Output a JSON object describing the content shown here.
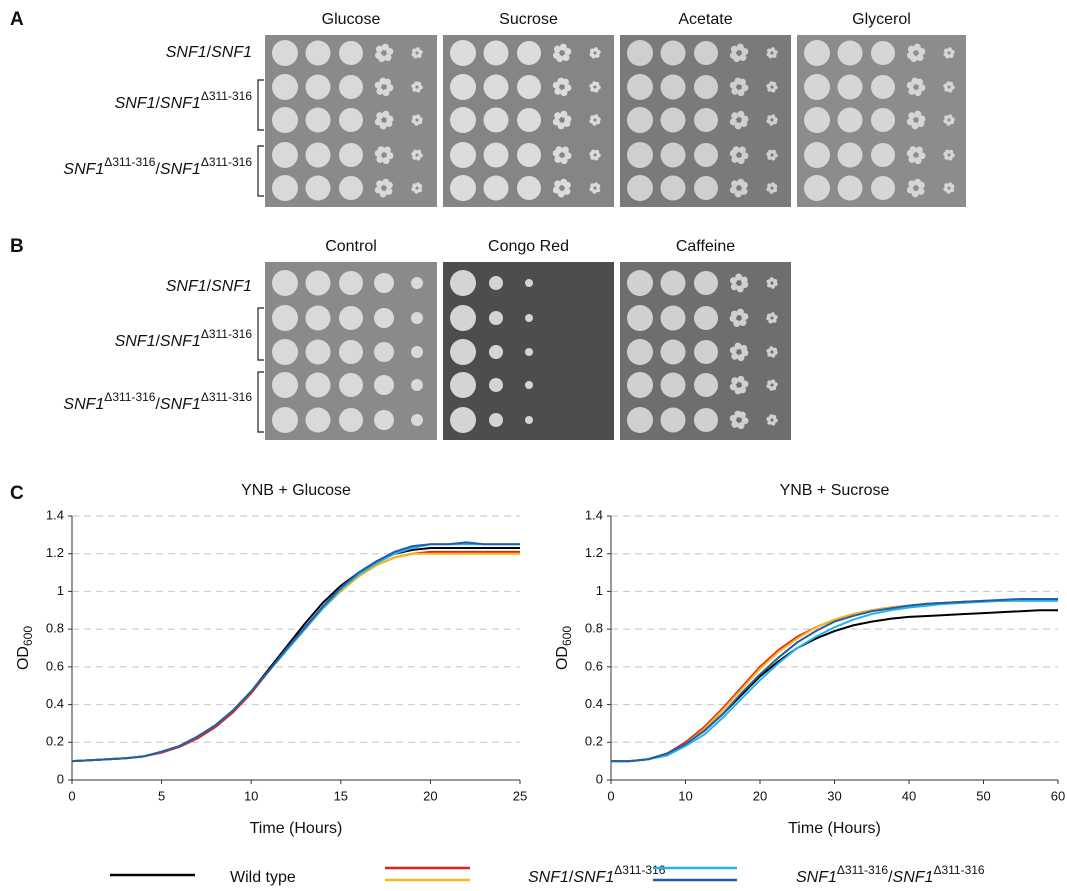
{
  "panels": [
    {
      "label": "A",
      "conditions": [
        "Glucose",
        "Sucrose",
        "Acetate",
        "Glycerol"
      ]
    },
    {
      "label": "B",
      "conditions": [
        "Control",
        "Congo Red",
        "Caffeine"
      ]
    }
  ],
  "strains": [
    {
      "parts": [
        "SNF1",
        "/",
        "SNF1"
      ]
    },
    {
      "parts": [
        "SNF1",
        "/",
        "SNF1",
        {
          "sup": "Δ311-316"
        }
      ]
    },
    {
      "parts": [
        "SNF1",
        {
          "sup": "Δ311-316"
        },
        "/",
        "SNF1",
        {
          "sup": "Δ311-316"
        }
      ]
    }
  ],
  "chart_panel": "C",
  "legend": [
    {
      "parts": [
        "Wild type"
      ],
      "colors": [
        "#000000"
      ]
    },
    {
      "parts": [
        "SNF1",
        "/",
        "SNF1",
        {
          "sup": "Δ311-316"
        }
      ],
      "colors": [
        "#e8201a",
        "#f5b915"
      ]
    },
    {
      "parts": [
        "SNF1",
        {
          "sup": "Δ311-316"
        },
        "/",
        "SNF1",
        {
          "sup": "Δ311-316"
        }
      ],
      "colors": [
        "#27b3ea",
        "#1f5fa8"
      ]
    }
  ],
  "chart_data": [
    {
      "type": "line",
      "title": "YNB + Glucose",
      "xlabel": "Time (Hours)",
      "ylabel": "OD",
      "ylabel_sub": "600",
      "xlim": [
        0,
        25
      ],
      "xticks": [
        0,
        5,
        10,
        15,
        20,
        25
      ],
      "ylim": [
        0,
        1.4
      ],
      "yticks": [
        0,
        0.2,
        0.4,
        0.6,
        0.8,
        1,
        1.2,
        1.4
      ],
      "grid": true,
      "x": [
        0,
        1,
        2,
        3,
        4,
        5,
        6,
        7,
        8,
        9,
        10,
        11,
        12,
        13,
        14,
        15,
        16,
        17,
        18,
        19,
        20,
        21,
        22,
        23,
        24,
        25
      ],
      "series": [
        {
          "color": "#000000",
          "values": [
            0.1,
            0.105,
            0.11,
            0.115,
            0.125,
            0.15,
            0.18,
            0.23,
            0.29,
            0.37,
            0.47,
            0.59,
            0.71,
            0.83,
            0.94,
            1.03,
            1.1,
            1.16,
            1.2,
            1.22,
            1.23,
            1.23,
            1.23,
            1.23,
            1.23,
            1.23
          ]
        },
        {
          "color": "#e8201a",
          "values": [
            0.1,
            0.105,
            0.11,
            0.115,
            0.125,
            0.145,
            0.175,
            0.22,
            0.28,
            0.36,
            0.46,
            0.58,
            0.7,
            0.81,
            0.92,
            1.01,
            1.08,
            1.14,
            1.18,
            1.2,
            1.21,
            1.21,
            1.21,
            1.21,
            1.21,
            1.21
          ]
        },
        {
          "color": "#f5b915",
          "values": [
            0.1,
            0.105,
            0.11,
            0.115,
            0.125,
            0.15,
            0.18,
            0.23,
            0.29,
            0.37,
            0.47,
            0.58,
            0.69,
            0.8,
            0.91,
            1.0,
            1.08,
            1.14,
            1.18,
            1.2,
            1.2,
            1.2,
            1.2,
            1.2,
            1.2,
            1.2
          ]
        },
        {
          "color": "#27b3ea",
          "values": [
            0.1,
            0.105,
            0.11,
            0.115,
            0.125,
            0.15,
            0.18,
            0.23,
            0.29,
            0.37,
            0.47,
            0.58,
            0.69,
            0.8,
            0.91,
            1.01,
            1.09,
            1.15,
            1.2,
            1.23,
            1.25,
            1.25,
            1.25,
            1.25,
            1.25,
            1.25
          ]
        },
        {
          "color": "#1f5fa8",
          "values": [
            0.1,
            0.105,
            0.11,
            0.115,
            0.125,
            0.15,
            0.18,
            0.23,
            0.29,
            0.37,
            0.47,
            0.58,
            0.7,
            0.81,
            0.92,
            1.02,
            1.1,
            1.16,
            1.21,
            1.24,
            1.25,
            1.25,
            1.26,
            1.25,
            1.25,
            1.25
          ]
        }
      ]
    },
    {
      "type": "line",
      "title": "YNB + Sucrose",
      "xlabel": "Time (Hours)",
      "ylabel": "OD",
      "ylabel_sub": "600",
      "xlim": [
        0,
        60
      ],
      "xticks": [
        0,
        10,
        20,
        30,
        40,
        50,
        60
      ],
      "ylim": [
        0,
        1.4
      ],
      "yticks": [
        0,
        0.2,
        0.4,
        0.6,
        0.8,
        1,
        1.2,
        1.4
      ],
      "grid": true,
      "x": [
        0,
        2.5,
        5,
        7.5,
        10,
        12.5,
        15,
        17.5,
        20,
        22.5,
        25,
        27.5,
        30,
        32.5,
        35,
        37.5,
        40,
        42.5,
        45,
        47.5,
        50,
        52.5,
        55,
        57.5,
        60
      ],
      "series": [
        {
          "color": "#000000",
          "values": [
            0.1,
            0.1,
            0.11,
            0.14,
            0.19,
            0.26,
            0.35,
            0.45,
            0.55,
            0.63,
            0.7,
            0.75,
            0.79,
            0.82,
            0.84,
            0.855,
            0.865,
            0.87,
            0.875,
            0.88,
            0.885,
            0.89,
            0.895,
            0.9,
            0.9
          ]
        },
        {
          "color": "#e8201a",
          "values": [
            0.1,
            0.1,
            0.11,
            0.14,
            0.2,
            0.28,
            0.38,
            0.49,
            0.6,
            0.69,
            0.76,
            0.81,
            0.85,
            0.88,
            0.9,
            0.915,
            0.925,
            0.935,
            0.94,
            0.945,
            0.95,
            0.95,
            0.955,
            0.955,
            0.955
          ]
        },
        {
          "color": "#f5b915",
          "values": [
            0.1,
            0.1,
            0.11,
            0.14,
            0.19,
            0.27,
            0.37,
            0.48,
            0.59,
            0.68,
            0.75,
            0.81,
            0.85,
            0.88,
            0.9,
            0.915,
            0.925,
            0.935,
            0.94,
            0.945,
            0.95,
            0.95,
            0.955,
            0.955,
            0.955
          ]
        },
        {
          "color": "#27b3ea",
          "values": [
            0.1,
            0.1,
            0.11,
            0.13,
            0.18,
            0.24,
            0.33,
            0.43,
            0.53,
            0.62,
            0.7,
            0.76,
            0.81,
            0.85,
            0.88,
            0.9,
            0.915,
            0.925,
            0.935,
            0.94,
            0.945,
            0.95,
            0.95,
            0.95,
            0.95
          ]
        },
        {
          "color": "#1f5fa8",
          "values": [
            0.1,
            0.1,
            0.11,
            0.14,
            0.19,
            0.26,
            0.35,
            0.46,
            0.56,
            0.65,
            0.73,
            0.79,
            0.84,
            0.87,
            0.895,
            0.91,
            0.925,
            0.935,
            0.94,
            0.945,
            0.95,
            0.955,
            0.96,
            0.96,
            0.96
          ]
        }
      ]
    }
  ]
}
